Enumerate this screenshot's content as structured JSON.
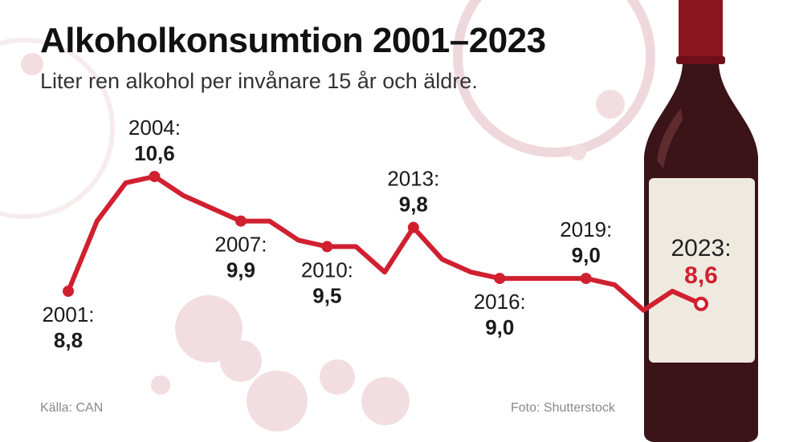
{
  "header": {
    "title": "Alkoholkonsumtion 2001–2023",
    "subtitle": "Liter ren alkohol per invånare 15 år och äldre."
  },
  "footer": {
    "source": "Källa: CAN",
    "credit": "Foto: Shutterstock"
  },
  "colors": {
    "line": "#d0202f",
    "highlight": "#d0202f",
    "label_text": "#1a1a1a",
    "bottle_glass": "#3a1418",
    "bottle_cap": "#8c1520",
    "bottle_label": "#efeae0",
    "stain": "#e8c4c9"
  },
  "chart_data": {
    "type": "line",
    "title": "Alkoholkonsumtion 2001–2023",
    "subtitle": "Liter ren alkohol per invånare 15 år och äldre.",
    "xlabel": "",
    "ylabel": "",
    "grid": false,
    "x": [
      2001,
      2002,
      2003,
      2004,
      2005,
      2006,
      2007,
      2008,
      2009,
      2010,
      2011,
      2012,
      2013,
      2014,
      2015,
      2016,
      2017,
      2018,
      2019,
      2020,
      2021,
      2022,
      2023
    ],
    "series": [
      {
        "values": [
          8.8,
          9.9,
          10.5,
          10.6,
          10.3,
          10.1,
          9.9,
          9.9,
          9.6,
          9.5,
          9.5,
          9.1,
          9.8,
          9.3,
          9.1,
          9.0,
          9.0,
          9.0,
          9.0,
          8.9,
          8.5,
          8.8,
          8.6
        ]
      }
    ],
    "annotations": [
      {
        "year_label": "2001:",
        "value_label": "8,8",
        "x": 2001,
        "y": 8.8,
        "position": "below"
      },
      {
        "year_label": "2004:",
        "value_label": "10,6",
        "x": 2004,
        "y": 10.6,
        "position": "above"
      },
      {
        "year_label": "2007:",
        "value_label": "9,9",
        "x": 2007,
        "y": 9.9,
        "position": "below"
      },
      {
        "year_label": "2010:",
        "value_label": "9,5",
        "x": 2010,
        "y": 9.5,
        "position": "below"
      },
      {
        "year_label": "2013:",
        "value_label": "9,8",
        "x": 2013,
        "y": 9.8,
        "position": "above"
      },
      {
        "year_label": "2016:",
        "value_label": "9,0",
        "x": 2016,
        "y": 9.0,
        "position": "below"
      },
      {
        "year_label": "2019:",
        "value_label": "9,0",
        "x": 2019,
        "y": 9.0,
        "position": "above"
      },
      {
        "year_label": "2023:",
        "value_label": "8,6",
        "x": 2023,
        "y": 8.6,
        "position": "above",
        "highlight": true
      }
    ]
  }
}
